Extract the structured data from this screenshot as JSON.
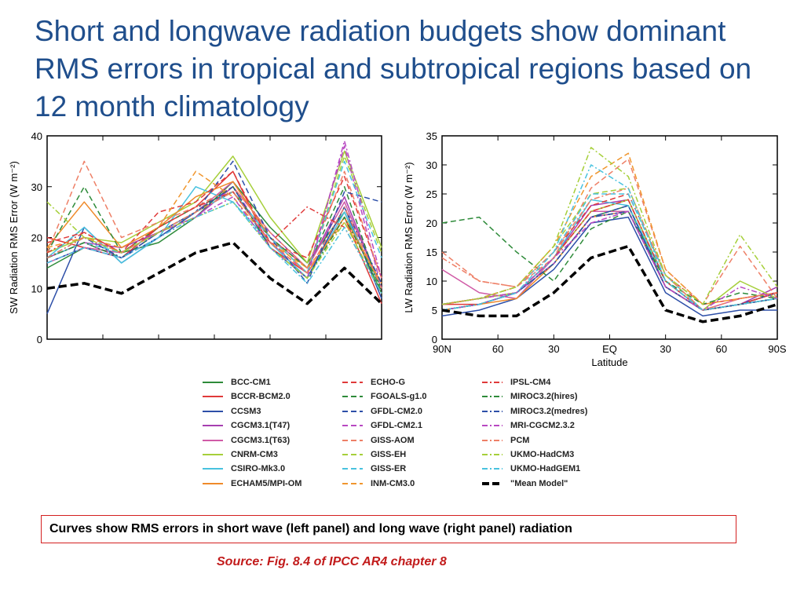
{
  "slide": {
    "title": "Short and longwave radiation budgets show dominant RMS errors in tropical and subtropical regions based on 12 month climatology",
    "caption": "Curves show RMS errors in short wave (left panel) and long wave (right panel) radiation",
    "source": "Source: Fig. 8.4 of IPCC AR4 chapter 8"
  },
  "chart_data": [
    {
      "type": "line",
      "ylabel": "SW Radiation RMS Error (W m⁻²)",
      "xlabel": "",
      "ylim": [
        0,
        40
      ],
      "yticks": [
        "0",
        "10",
        "20",
        "30",
        "40"
      ],
      "xlim": [
        90,
        -90
      ],
      "x": [
        90,
        70,
        50,
        30,
        10,
        -10,
        -30,
        -50,
        -70,
        -90
      ],
      "series": [
        {
          "name": "BCC-CM1",
          "values": [
            14,
            18,
            17,
            19,
            24,
            31,
            22,
            15,
            25,
            9
          ]
        },
        {
          "name": "BCCR-BCM2.0",
          "values": [
            20,
            18,
            16,
            22,
            26,
            33,
            18,
            13,
            24,
            7
          ]
        },
        {
          "name": "CCSM3",
          "values": [
            5,
            22,
            15,
            20,
            25,
            29,
            19,
            12,
            26,
            8
          ]
        },
        {
          "name": "CGCM3.1(T47)",
          "values": [
            16,
            19,
            18,
            21,
            24,
            30,
            21,
            14,
            28,
            10
          ]
        },
        {
          "name": "CGCM3.1(T63)",
          "values": [
            15,
            18,
            17,
            21,
            25,
            31,
            20,
            14,
            27,
            10
          ]
        },
        {
          "name": "CNRM-CM3",
          "values": [
            17,
            20,
            19,
            23,
            27,
            36,
            24,
            15,
            37,
            18
          ]
        },
        {
          "name": "CSIRO-Mk3.0",
          "values": [
            16,
            22,
            15,
            20,
            30,
            27,
            19,
            12,
            25,
            10
          ]
        },
        {
          "name": "ECHAM5/MPI-OM",
          "values": [
            18,
            27,
            18,
            22,
            28,
            31,
            20,
            13,
            24,
            11
          ]
        },
        {
          "name": "ECHO-G",
          "values": [
            19,
            21,
            17,
            25,
            27,
            33,
            19,
            16,
            32,
            12
          ]
        },
        {
          "name": "FGOALS-g1.0",
          "values": [
            17,
            30,
            17,
            22,
            26,
            29,
            20,
            14,
            30,
            9
          ]
        },
        {
          "name": "GFDL-CM2.0",
          "values": [
            15,
            18,
            16,
            20,
            25,
            35,
            20,
            11,
            29,
            27
          ]
        },
        {
          "name": "GFDL-CM2.1",
          "values": [
            16,
            19,
            16,
            21,
            24,
            30,
            19,
            13,
            38,
            10
          ]
        },
        {
          "name": "GISS-AOM",
          "values": [
            17,
            35,
            20,
            23,
            26,
            30,
            21,
            14,
            33,
            12
          ]
        },
        {
          "name": "GISS-EH",
          "values": [
            16,
            19,
            17,
            21,
            25,
            29,
            20,
            13,
            36,
            17
          ]
        },
        {
          "name": "GISS-ER",
          "values": [
            16,
            19,
            17,
            21,
            25,
            29,
            20,
            13,
            35,
            16
          ]
        },
        {
          "name": "INM-CM3.0",
          "values": [
            18,
            20,
            18,
            22,
            33,
            28,
            19,
            14,
            23,
            11
          ]
        },
        {
          "name": "IPSL-CM4",
          "values": [
            17,
            21,
            17,
            22,
            26,
            29,
            19,
            26,
            22,
            9
          ]
        },
        {
          "name": "MIROC3.2(hires)",
          "values": [
            16,
            19,
            16,
            21,
            25,
            30,
            18,
            12,
            24,
            10
          ]
        },
        {
          "name": "MIROC3.2(medres)",
          "values": [
            16,
            20,
            16,
            21,
            25,
            30,
            18,
            12,
            26,
            11
          ]
        },
        {
          "name": "MRI-CGCM2.3.2",
          "values": [
            15,
            18,
            16,
            20,
            24,
            28,
            18,
            12,
            39,
            12
          ]
        },
        {
          "name": "PCM",
          "values": [
            16,
            20,
            17,
            21,
            25,
            29,
            19,
            13,
            26,
            10
          ]
        },
        {
          "name": "UKMO-HadCM3",
          "values": [
            27,
            20,
            17,
            21,
            24,
            27,
            18,
            12,
            23,
            9
          ]
        },
        {
          "name": "UKMO-HadGEM1",
          "values": [
            15,
            18,
            16,
            20,
            24,
            27,
            18,
            11,
            22,
            9
          ]
        },
        {
          "name": "\"Mean Model\"",
          "values": [
            10,
            11,
            9,
            13,
            17,
            19,
            12,
            7,
            14,
            7
          ]
        }
      ]
    },
    {
      "type": "line",
      "ylabel": "LW Radiation RMS Error (W m⁻²)",
      "xlabel": "Latitude",
      "ylim": [
        0,
        35
      ],
      "yticks": [
        "0",
        "5",
        "10",
        "15",
        "20",
        "25",
        "30",
        "35"
      ],
      "xlim": [
        90,
        -90
      ],
      "xticks": [
        "90N",
        "60",
        "30",
        "EQ",
        "30",
        "60",
        "90S"
      ],
      "x": [
        90,
        70,
        50,
        30,
        10,
        -10,
        -30,
        -50,
        -70,
        -90
      ],
      "series": [
        {
          "name": "BCC-CM1",
          "values": [
            5,
            6,
            8,
            13,
            21,
            23,
            9,
            5,
            6,
            8
          ]
        },
        {
          "name": "BCCR-BCM2.0",
          "values": [
            6,
            6,
            8,
            14,
            22,
            24,
            10,
            5,
            6,
            8
          ]
        },
        {
          "name": "CCSM3",
          "values": [
            4,
            5,
            7,
            12,
            20,
            21,
            8,
            4,
            5,
            5
          ]
        },
        {
          "name": "CGCM3.1(T47)",
          "values": [
            6,
            7,
            8,
            14,
            23,
            24,
            10,
            5,
            6,
            9
          ]
        },
        {
          "name": "CGCM3.1(T63)",
          "values": [
            12,
            8,
            7,
            14,
            22,
            22,
            9,
            5,
            7,
            8
          ]
        },
        {
          "name": "CNRM-CM3",
          "values": [
            6,
            7,
            8,
            14,
            22,
            24,
            10,
            5,
            10,
            7
          ]
        },
        {
          "name": "CSIRO-Mk3.0",
          "values": [
            5,
            6,
            8,
            14,
            24,
            23,
            10,
            5,
            6,
            7
          ]
        },
        {
          "name": "ECHAM5/MPI-OM",
          "values": [
            5,
            6,
            7,
            13,
            21,
            22,
            9,
            5,
            6,
            7
          ]
        },
        {
          "name": "ECHO-G",
          "values": [
            6,
            7,
            9,
            15,
            23,
            25,
            11,
            6,
            7,
            8
          ]
        },
        {
          "name": "FGOALS-g1.0",
          "values": [
            20,
            21,
            15,
            10,
            19,
            22,
            10,
            6,
            8,
            7
          ]
        },
        {
          "name": "GFDL-CM2.0",
          "values": [
            5,
            6,
            8,
            13,
            21,
            23,
            9,
            5,
            6,
            8
          ]
        },
        {
          "name": "GFDL-CM2.1",
          "values": [
            5,
            6,
            8,
            13,
            21,
            22,
            9,
            5,
            6,
            7
          ]
        },
        {
          "name": "GISS-AOM",
          "values": [
            15,
            10,
            9,
            14,
            26,
            31,
            12,
            6,
            16,
            7
          ]
        },
        {
          "name": "GISS-EH",
          "values": [
            6,
            7,
            9,
            16,
            25,
            26,
            11,
            5,
            6,
            7
          ]
        },
        {
          "name": "GISS-ER",
          "values": [
            6,
            7,
            9,
            15,
            25,
            25,
            11,
            5,
            6,
            7
          ]
        },
        {
          "name": "INM-CM3.0",
          "values": [
            6,
            7,
            9,
            16,
            28,
            32,
            12,
            6,
            7,
            8
          ]
        },
        {
          "name": "IPSL-CM4",
          "values": [
            6,
            7,
            8,
            14,
            22,
            24,
            10,
            5,
            6,
            8
          ]
        },
        {
          "name": "MIROC3.2(hires)",
          "values": [
            5,
            6,
            8,
            13,
            21,
            22,
            9,
            5,
            6,
            7
          ]
        },
        {
          "name": "MIROC3.2(medres)",
          "values": [
            5,
            6,
            8,
            13,
            21,
            22,
            9,
            5,
            6,
            7
          ]
        },
        {
          "name": "MRI-CGCM2.3.2",
          "values": [
            6,
            7,
            8,
            14,
            20,
            22,
            9,
            5,
            9,
            7
          ]
        },
        {
          "name": "PCM",
          "values": [
            14,
            10,
            9,
            15,
            24,
            26,
            11,
            5,
            7,
            8
          ]
        },
        {
          "name": "UKMO-HadCM3",
          "values": [
            6,
            7,
            9,
            16,
            33,
            28,
            11,
            6,
            18,
            9
          ]
        },
        {
          "name": "UKMO-HadGEM1",
          "values": [
            5,
            6,
            8,
            15,
            30,
            26,
            10,
            5,
            6,
            7
          ]
        },
        {
          "name": "\"Mean Model\"",
          "values": [
            5,
            4,
            4,
            8,
            14,
            16,
            5,
            3,
            4,
            6
          ]
        }
      ]
    }
  ],
  "legend": {
    "items": [
      {
        "label": "BCC-CM1",
        "color": "#2e8b3a",
        "dash": "solid"
      },
      {
        "label": "BCCR-BCM2.0",
        "color": "#e03a3a",
        "dash": "solid"
      },
      {
        "label": "CCSM3",
        "color": "#2d4fa8",
        "dash": "solid"
      },
      {
        "label": "CGCM3.1(T47)",
        "color": "#a63fb0",
        "dash": "solid"
      },
      {
        "label": "CGCM3.1(T63)",
        "color": "#d05aa6",
        "dash": "solid"
      },
      {
        "label": "CNRM-CM3",
        "color": "#a6cf3a",
        "dash": "solid"
      },
      {
        "label": "CSIRO-Mk3.0",
        "color": "#48c2df",
        "dash": "solid"
      },
      {
        "label": "ECHAM5/MPI-OM",
        "color": "#ef8a2a",
        "dash": "solid"
      },
      {
        "label": "ECHO-G",
        "color": "#e03a3a",
        "dash": "dash"
      },
      {
        "label": "FGOALS-g1.0",
        "color": "#2e8b3a",
        "dash": "dash"
      },
      {
        "label": "GFDL-CM2.0",
        "color": "#2d4fa8",
        "dash": "dash"
      },
      {
        "label": "GFDL-CM2.1",
        "color": "#b848c2",
        "dash": "dash"
      },
      {
        "label": "GISS-AOM",
        "color": "#ee7f66",
        "dash": "dash"
      },
      {
        "label": "GISS-EH",
        "color": "#a6cf3a",
        "dash": "dash"
      },
      {
        "label": "GISS-ER",
        "color": "#48c2df",
        "dash": "dash"
      },
      {
        "label": "INM-CM3.0",
        "color": "#f0962e",
        "dash": "dash"
      },
      {
        "label": "IPSL-CM4",
        "color": "#e03a3a",
        "dash": "dashdot"
      },
      {
        "label": "MIROC3.2(hires)",
        "color": "#2e8b3a",
        "dash": "dashdot"
      },
      {
        "label": "MIROC3.2(medres)",
        "color": "#2d4fa8",
        "dash": "dashdot"
      },
      {
        "label": "MRI-CGCM2.3.2",
        "color": "#b848c2",
        "dash": "dashdot"
      },
      {
        "label": "PCM",
        "color": "#ee7f66",
        "dash": "dashdot"
      },
      {
        "label": "UKMO-HadCM3",
        "color": "#a6cf3a",
        "dash": "dashdot"
      },
      {
        "label": "UKMO-HadGEM1",
        "color": "#48c2df",
        "dash": "dashdot"
      },
      {
        "label": "\"Mean Model\"",
        "color": "#000000",
        "dash": "bolddash"
      }
    ]
  }
}
